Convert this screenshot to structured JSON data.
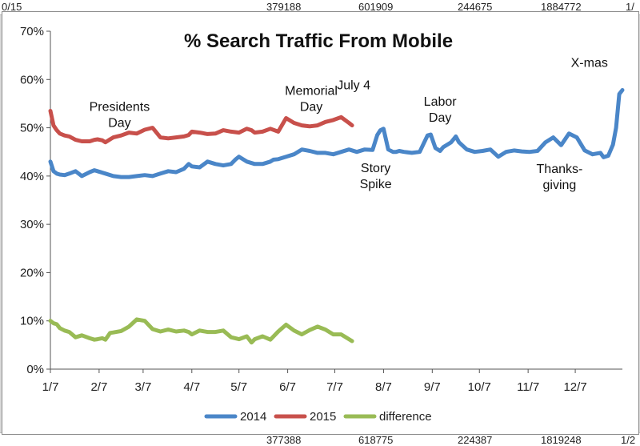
{
  "spreadsheet": {
    "top_row": [
      "0/15",
      "379188",
      "601909",
      "244675",
      "1884772",
      "1/"
    ],
    "bottom_row": [
      "377388",
      "618775",
      "224387",
      "1819248",
      "1/2"
    ]
  },
  "chart_data": {
    "type": "line",
    "title": "% Search Traffic From Mobile",
    "xlabel": "",
    "ylabel": "",
    "x_tick_labels": [
      "1/7",
      "2/7",
      "3/7",
      "4/7",
      "5/7",
      "6/7",
      "7/7",
      "8/7",
      "9/7",
      "10/7",
      "11/7",
      "12/7"
    ],
    "ylim": [
      0,
      70
    ],
    "y_ticks": [
      0,
      10,
      20,
      30,
      40,
      50,
      60,
      70
    ],
    "y_tick_labels": [
      "0%",
      "10%",
      "20%",
      "30%",
      "40%",
      "50%",
      "60%",
      "70%"
    ],
    "legend_position": "bottom",
    "colors": {
      "2014": "#4a86c8",
      "2015": "#c8504b",
      "difference": "#99bb55"
    },
    "series": [
      {
        "name": "2014",
        "x": [
          0,
          2,
          4,
          6,
          9,
          12,
          16,
          20,
          25,
          28,
          30,
          35,
          40,
          45,
          50,
          55,
          60,
          65,
          70,
          75,
          80,
          85,
          88,
          90,
          95,
          100,
          105,
          110,
          115,
          118,
          120,
          125,
          130,
          135,
          140,
          142,
          145,
          150,
          155,
          160,
          165,
          170,
          175,
          180,
          185,
          190,
          195,
          200,
          205,
          208,
          210,
          212,
          215,
          218,
          220,
          222,
          225,
          230,
          235,
          240,
          242,
          245,
          248,
          250,
          255,
          258,
          260,
          265,
          270,
          275,
          280,
          285,
          290,
          295,
          300,
          305,
          310,
          315,
          320,
          325,
          330,
          335,
          340,
          345,
          350,
          352,
          355,
          358,
          360,
          362,
          364
        ],
        "y": [
          43,
          41,
          40.5,
          40.3,
          40.2,
          40.5,
          41,
          40,
          40.8,
          41.2,
          41,
          40.5,
          40,
          39.8,
          39.8,
          40,
          40.2,
          40,
          40.5,
          41,
          40.8,
          41.5,
          42.5,
          42,
          41.8,
          43,
          42.5,
          42.2,
          42.5,
          43.5,
          44,
          43,
          42.5,
          42.5,
          43,
          43.4,
          43.5,
          44,
          44.5,
          45.5,
          45.2,
          44.8,
          44.8,
          44.5,
          45,
          45.5,
          45,
          45.5,
          45.4,
          48.5,
          49.5,
          49.8,
          45.5,
          45,
          45,
          45.2,
          45,
          44.8,
          45,
          48.4,
          48.6,
          45.8,
          45.2,
          46,
          47,
          48.2,
          47,
          45.5,
          45,
          45.2,
          45.5,
          44,
          45,
          45.3,
          45.1,
          45,
          45.2,
          47,
          48,
          46.4,
          48.8,
          48,
          45.3,
          44.5,
          44.8,
          43.9,
          44.2,
          46.5,
          50,
          57,
          57.8
        ]
      },
      {
        "name": "2015",
        "x": [
          0,
          2,
          4,
          6,
          9,
          12,
          16,
          20,
          25,
          28,
          30,
          33,
          35,
          38,
          40,
          45,
          50,
          55,
          60,
          65,
          70,
          75,
          80,
          85,
          88,
          90,
          95,
          100,
          105,
          110,
          115,
          120,
          125,
          128,
          130,
          135,
          140,
          145,
          150,
          155,
          160,
          165,
          170,
          175,
          180,
          185,
          190,
          192
        ],
        "y": [
          53.5,
          50.5,
          49.5,
          48.8,
          48.4,
          48.2,
          47.5,
          47.2,
          47.2,
          47.5,
          47.6,
          47.4,
          47,
          47.6,
          48,
          48.4,
          49,
          48.8,
          49.6,
          50,
          48,
          47.8,
          48,
          48.2,
          48.5,
          49.2,
          49,
          48.7,
          48.8,
          49.5,
          49.2,
          49,
          49.8,
          49.5,
          49,
          49.2,
          49.8,
          49.2,
          52,
          51,
          50.5,
          50.3,
          50.5,
          51.2,
          51.6,
          52.2,
          51,
          50.5
        ]
      },
      {
        "name": "difference",
        "x": [
          0,
          2,
          4,
          6,
          9,
          12,
          16,
          20,
          25,
          28,
          30,
          33,
          35,
          38,
          40,
          45,
          50,
          55,
          60,
          65,
          70,
          75,
          80,
          85,
          88,
          90,
          95,
          100,
          105,
          110,
          115,
          120,
          125,
          128,
          130,
          135,
          140,
          145,
          150,
          155,
          160,
          165,
          170,
          175,
          180,
          185,
          190,
          192
        ],
        "y": [
          10,
          9.5,
          9.3,
          8.5,
          8,
          7.7,
          6.6,
          7,
          6.4,
          6.1,
          6.2,
          6.4,
          6.1,
          7.5,
          7.6,
          7.9,
          8.8,
          10.3,
          10,
          8.3,
          7.8,
          8.2,
          7.8,
          8,
          7.7,
          7.2,
          8,
          7.7,
          7.7,
          8,
          6.6,
          6.2,
          6.8,
          5.5,
          6.2,
          6.8,
          6.1,
          7.8,
          9.2,
          8,
          7.2,
          8.1,
          8.8,
          8.2,
          7.2,
          7.2,
          6.2,
          5.8
        ]
      }
    ],
    "annotations": [
      {
        "text": [
          "Presidents",
          "Day"
        ],
        "x_day": 44,
        "y": 53.5
      },
      {
        "text": [
          "Memorial",
          "Day"
        ],
        "x_day": 166,
        "y": 56.8
      },
      {
        "text": [
          "July 4"
        ],
        "x_day": 193,
        "y": 58
      },
      {
        "text": [
          "Story",
          "Spike"
        ],
        "x_day": 207,
        "y": 40.8
      },
      {
        "text": [
          "Labor",
          "Day"
        ],
        "x_day": 248,
        "y": 54.6
      },
      {
        "text": [
          "Thanks-",
          "giving"
        ],
        "x_day": 324,
        "y": 40.6
      },
      {
        "text": [
          "X-mas"
        ],
        "x_day": 343,
        "y": 62.6
      }
    ]
  }
}
